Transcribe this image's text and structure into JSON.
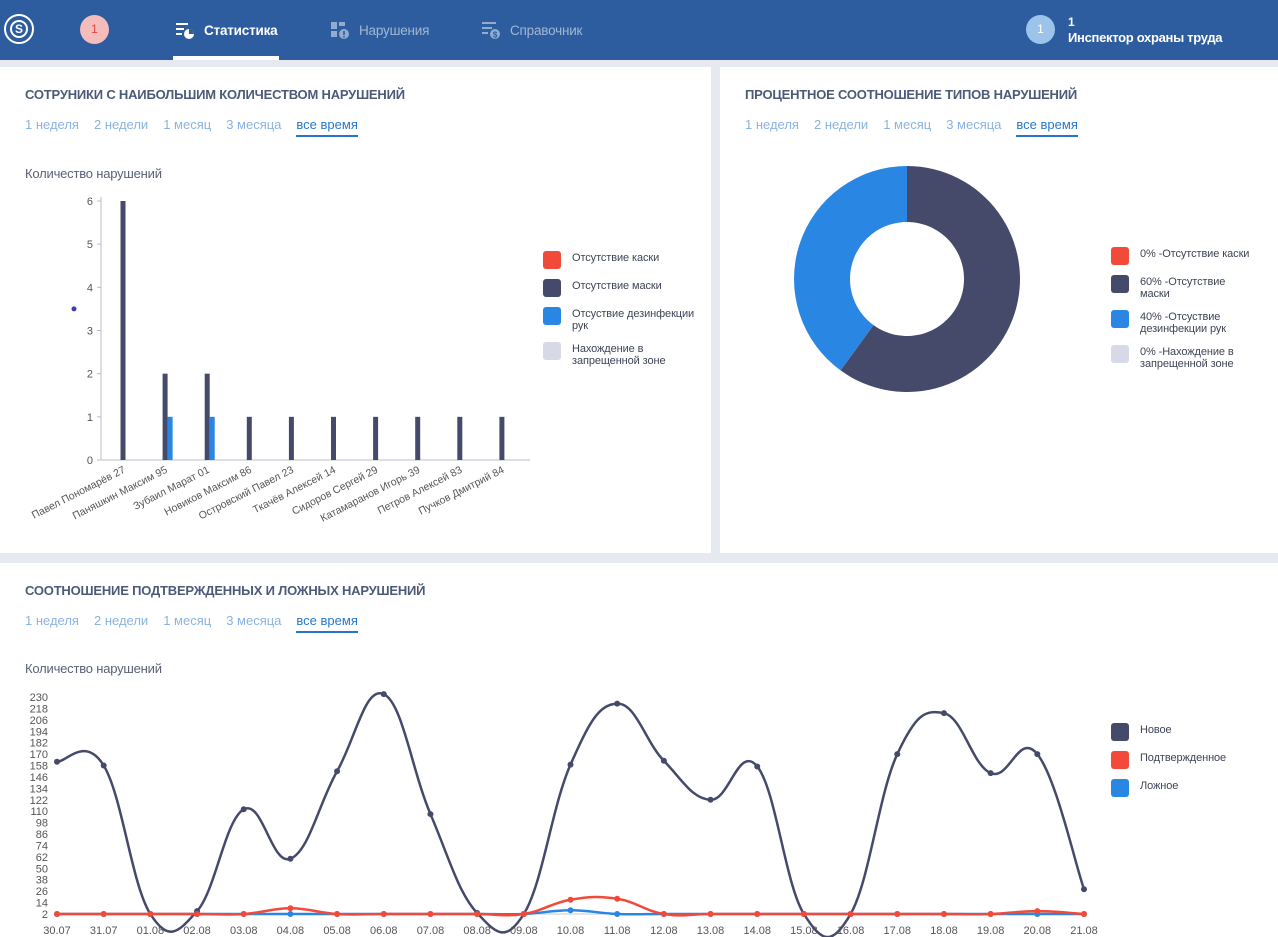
{
  "header": {
    "logo_letter": "S",
    "notifications_count": "1",
    "nav": [
      {
        "label": "Статистика",
        "icon": "statistics-icon",
        "active": true
      },
      {
        "label": "Нарушения",
        "icon": "violations-icon",
        "active": false
      },
      {
        "label": "Справочник",
        "icon": "reference-icon",
        "active": false
      }
    ],
    "user": {
      "avatar": "1",
      "count": "1",
      "role": "Инспектор охраны труда"
    }
  },
  "colors": {
    "header_bg": "#2d5d9e",
    "helmet": "#f24a3a",
    "mask": "#454a6b",
    "disinfection": "#2a86e3",
    "zone": "#d8d9e6",
    "new": "#454a6b",
    "confirmed": "#f24a3a",
    "false": "#2a86e3"
  },
  "periods": [
    "1 неделя",
    "2 недели",
    "1 месяц",
    "3 месяца",
    "все время"
  ],
  "panel1": {
    "title": "СОТРУНИКИ С НАИБОЛЬШИМ КОЛИЧЕСТВОМ НАРУШЕНИЙ",
    "active_period": 4,
    "ylabel": "Количество нарушений",
    "legend": [
      "Отсутствие каски",
      "Отсутствие маски",
      "Отсуствие дезинфекции рук",
      "Нахождение в запрещенной зоне"
    ]
  },
  "panel2": {
    "title": "ПРОЦЕНТНОЕ СООТНОШЕНИЕ ТИПОВ НАРУШЕНИЙ",
    "active_period": 4,
    "legend": [
      "0% -Отсутствие каски",
      "60% -Отсутствие маски",
      "40% -Отсуствие дезинфекции рук",
      "0% -Нахождение в запрещенной зоне"
    ]
  },
  "panel3": {
    "title": "СООТНОШЕНИЕ ПОДТВЕРЖДЕННЫХ И ЛОЖНЫХ НАРУШЕНИЙ",
    "active_period": 4,
    "ylabel": "Количество нарушений",
    "legend": [
      "Новое",
      "Подтвержденное",
      "Ложное"
    ]
  },
  "chart_data": [
    {
      "type": "bar",
      "ylabel": "Количество нарушений",
      "ylim": [
        0,
        6
      ],
      "yticks": [
        0,
        1,
        2,
        3,
        4,
        5,
        6
      ],
      "categories": [
        "Павел Пономарёв 27",
        "Паняшкин Максим 95",
        "Зубаил Марат 01",
        "Новиков Максим 86",
        "Островский Павел 23",
        "Ткачёв Алексей 14",
        "Сидоров Сергей 29",
        "Катамаранов Игорь 39",
        "Петров Алексей 83",
        "Пучков Дмитрий 84"
      ],
      "series": [
        {
          "name": "Отсутствие каски",
          "color": "#f24a3a",
          "values": [
            0,
            0,
            0,
            0,
            0,
            0,
            0,
            0,
            0,
            0
          ]
        },
        {
          "name": "Отсутствие маски",
          "color": "#454a6b",
          "values": [
            6,
            2,
            2,
            1,
            1,
            1,
            1,
            1,
            1,
            1
          ]
        },
        {
          "name": "Отсуствие дезинфекции рук",
          "color": "#2a86e3",
          "values": [
            0,
            1,
            1,
            0,
            0,
            0,
            0,
            0,
            0,
            0
          ]
        },
        {
          "name": "Нахождение в запрещенной зоне",
          "color": "#d8d9e6",
          "values": [
            0,
            0,
            0,
            0,
            0,
            0,
            0,
            0,
            0,
            0
          ]
        }
      ],
      "stray_point": {
        "value": 3.5
      }
    },
    {
      "type": "pie",
      "donut": true,
      "slices": [
        {
          "label": "Отсутствие каски",
          "value": 0,
          "color": "#f24a3a"
        },
        {
          "label": "Отсутствие маски",
          "value": 60,
          "color": "#454a6b"
        },
        {
          "label": "Отсуствие дезинфекции рук",
          "value": 40,
          "color": "#2a86e3"
        },
        {
          "label": "Нахождение в запрещенной зоне",
          "value": 0,
          "color": "#d8d9e6"
        }
      ]
    },
    {
      "type": "line",
      "ylabel": "Количество нарушений",
      "ylim": [
        0,
        230
      ],
      "yticks": [
        2,
        14,
        26,
        38,
        50,
        62,
        74,
        86,
        98,
        110,
        122,
        134,
        146,
        158,
        170,
        182,
        194,
        206,
        218,
        230
      ],
      "x": [
        "30.07",
        "31.07",
        "01.08",
        "02.08",
        "03.08",
        "04.08",
        "05.08",
        "06.08",
        "07.08",
        "08.08",
        "09.08",
        "10.08",
        "11.08",
        "12.08",
        "13.08",
        "14.08",
        "15.08",
        "16.08",
        "17.08",
        "18.08",
        "19.08",
        "20.08",
        "21.08"
      ],
      "series": [
        {
          "name": "Новое",
          "color": "#454a6b",
          "values": [
            162,
            158,
            2,
            5,
            112,
            60,
            152,
            233,
            107,
            3,
            2,
            159,
            223,
            163,
            122,
            157,
            2,
            2,
            170,
            213,
            150,
            170,
            28
          ]
        },
        {
          "name": "Подтвержденное",
          "color": "#f24a3a",
          "values": [
            2,
            2,
            2,
            2,
            2,
            8,
            2,
            2,
            2,
            2,
            2,
            17,
            18,
            2,
            2,
            2,
            2,
            2,
            2,
            2,
            2,
            5,
            2
          ]
        },
        {
          "name": "Ложное",
          "color": "#2a86e3",
          "values": [
            2,
            2,
            2,
            2,
            2,
            2,
            2,
            2,
            2,
            2,
            2,
            6,
            2,
            2,
            2,
            2,
            2,
            2,
            2,
            2,
            2,
            2,
            2
          ]
        }
      ]
    }
  ]
}
